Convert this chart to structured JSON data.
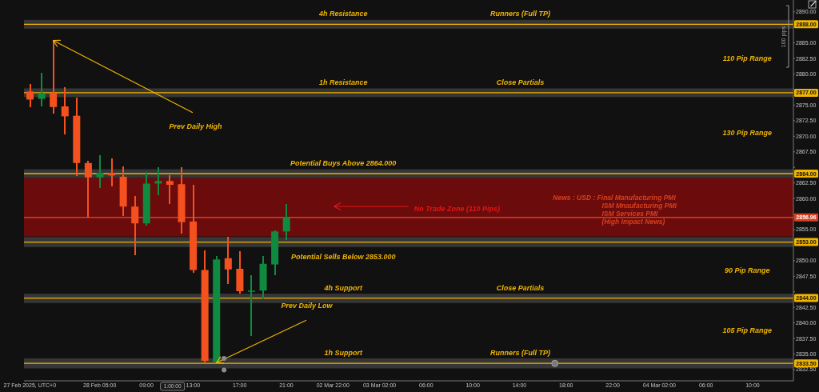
{
  "chart_data": {
    "type": "candlestick",
    "categories": [
      "27 Feb 2025, UTC+0",
      null,
      null,
      null,
      null,
      null,
      "28 Feb 05:00",
      null,
      null,
      null,
      "09:00",
      null,
      null,
      null,
      "13:00",
      null,
      null,
      null,
      "17:00",
      null,
      null,
      null,
      "21:00",
      null,
      null,
      null,
      "02 Mar 22:00",
      null,
      null,
      null,
      "03 Mar 02:00",
      null,
      null,
      null,
      "06:00",
      null,
      null,
      null,
      "10:00",
      null,
      null,
      null,
      "14:00",
      null,
      null,
      null,
      "18:00",
      null,
      null,
      null,
      "22:00",
      null,
      null,
      null,
      "04 Mar 02:00",
      null,
      null,
      null,
      "06:00",
      null,
      null,
      null,
      "10:00",
      null,
      null,
      null
    ],
    "ohlc": [
      [
        2877.2,
        2878.4,
        2874.7,
        2875.9
      ],
      [
        2876.0,
        2880.2,
        2874.8,
        2876.9
      ],
      [
        2877.0,
        2885.4,
        2873.7,
        2874.7
      ],
      [
        2874.8,
        2877.9,
        2870.3,
        2873.2
      ],
      [
        2873.3,
        2876.2,
        2863.6,
        2865.7
      ],
      [
        2865.7,
        2866.0,
        2856.9,
        2863.4
      ],
      [
        2863.4,
        2867.0,
        2861.7,
        2864.1
      ],
      [
        2864.1,
        2866.5,
        2862.0,
        2863.7
      ],
      [
        2863.5,
        2865.2,
        2857.2,
        2858.7
      ],
      [
        2858.7,
        2860.4,
        2850.9,
        2856.0
      ],
      [
        2856.0,
        2864.3,
        2855.6,
        2862.4
      ],
      [
        2862.4,
        2865.0,
        2860.5,
        2862.8
      ],
      [
        2862.8,
        2863.8,
        2859.1,
        2862.2
      ],
      [
        2862.3,
        2865.0,
        2854.4,
        2856.2
      ],
      [
        2856.3,
        2862.2,
        2848.1,
        2848.5
      ],
      [
        2848.5,
        2851.7,
        2833.7,
        2833.9
      ],
      [
        2833.7,
        2850.7,
        2833.6,
        2850.2
      ],
      [
        2850.4,
        2853.8,
        2846.2,
        2848.6
      ],
      [
        2848.7,
        2851.5,
        2844.7,
        2845.1
      ],
      [
        2845.1,
        2847.7,
        2837.9,
        2845.2
      ],
      [
        2845.2,
        2850.7,
        2844.0,
        2849.5
      ],
      [
        2849.4,
        2854.9,
        2847.7,
        2854.7
      ],
      [
        2854.7,
        2859.1,
        2853.3,
        2857.0
      ],
      null,
      null,
      null,
      null,
      null,
      null,
      null,
      null,
      null,
      null,
      null,
      null,
      null,
      null,
      null,
      null,
      null,
      null,
      null,
      null,
      null,
      null,
      null,
      null,
      null,
      null,
      null,
      null,
      null,
      null,
      null,
      null,
      null,
      null,
      null,
      null,
      null,
      null,
      null,
      null,
      null,
      null,
      null
    ],
    "colors": [
      "#f4511e",
      "#0f8a3e",
      "#f4511e",
      "#f4511e",
      "#f4511e",
      "#f4511e",
      "#0f8a3e",
      "#f4511e",
      "#f4511e",
      "#f4511e",
      "#0f8a3e",
      "#0f8a3e",
      "#f4511e",
      "#f4511e",
      "#f4511e",
      "#f4511e",
      "#0f8a3e",
      "#f4511e",
      "#f4511e",
      "#0f8a3e",
      "#0f8a3e",
      "#0f8a3e",
      "#0f8a3e",
      null,
      null,
      null,
      null,
      null,
      null,
      null,
      null,
      null,
      null,
      null,
      null,
      null,
      null,
      null,
      null,
      null,
      null,
      null,
      null,
      null,
      null,
      null,
      null,
      null,
      null,
      null,
      null,
      null,
      null,
      null,
      null,
      null,
      null,
      null,
      null,
      null,
      null,
      null,
      null,
      null,
      null,
      null
    ],
    "ylim": [
      2830.7,
      2891.9
    ],
    "yticks": [
      {
        "value": 2832.5,
        "label": "2832.50"
      },
      {
        "value": 2835,
        "label": "2835.00"
      },
      {
        "value": 2837.5,
        "label": "2837.50"
      },
      {
        "value": 2840,
        "label": "2840.00"
      },
      {
        "value": 2842.5,
        "label": "2842.50"
      },
      {
        "value": 2845,
        "label": null
      },
      {
        "value": 2847.5,
        "label": "2847.50"
      },
      {
        "value": 2850,
        "label": "2850.00"
      },
      {
        "value": 2852.5,
        "label": null
      },
      {
        "value": 2855,
        "label": "2855.00"
      },
      {
        "value": 2857.5,
        "label": null
      },
      {
        "value": 2860,
        "label": "2860.00"
      },
      {
        "value": 2862.5,
        "label": "2862.50"
      },
      {
        "value": 2865,
        "label": null
      },
      {
        "value": 2867.5,
        "label": "2867.50"
      },
      {
        "value": 2870,
        "label": "2870.00"
      },
      {
        "value": 2872.5,
        "label": "2872.50"
      },
      {
        "value": 2875,
        "label": "2875.00"
      },
      {
        "value": 2877.5,
        "label": null
      },
      {
        "value": 2880,
        "label": "2880.00"
      },
      {
        "value": 2882.5,
        "label": "2882.50"
      },
      {
        "value": 2885,
        "label": "2885.00"
      },
      {
        "value": 2887.5,
        "label": null
      },
      {
        "value": 2890,
        "label": "2890.00"
      }
    ],
    "bands": [
      {
        "axis": "y",
        "from": 2853.9,
        "to": 2863.3,
        "color": "#6b0b0b",
        "label": "No Trade Zone (110 Pips)"
      },
      {
        "axis": "y",
        "from": 2887.3,
        "to": 2888.7,
        "color": "#363636"
      },
      {
        "axis": "y",
        "from": 2876.3,
        "to": 2877.7,
        "color": "#363636"
      },
      {
        "axis": "y",
        "from": 2863.3,
        "to": 2864.7,
        "color": "#363636"
      },
      {
        "axis": "y",
        "from": 2852.2,
        "to": 2853.8,
        "color": "#363636"
      },
      {
        "axis": "y",
        "from": 2843.2,
        "to": 2844.7,
        "color": "#363636"
      },
      {
        "axis": "y",
        "from": 2832.7,
        "to": 2834.3,
        "color": "#363636"
      }
    ],
    "ref_lines": [
      {
        "axis": "y",
        "value": 2888,
        "label": "2888.00",
        "color": "#f0b400"
      },
      {
        "axis": "y",
        "value": 2877,
        "label": "2877.00",
        "color": "#f0b400"
      },
      {
        "axis": "y",
        "value": 2864,
        "label": "2864.00",
        "color": "#f0b400"
      },
      {
        "axis": "y",
        "value": 2853,
        "label": "2853.00",
        "color": "#f0b400"
      },
      {
        "axis": "y",
        "value": 2844,
        "label": "2844.00",
        "color": "#f0b400"
      },
      {
        "axis": "y",
        "value": 2833.5,
        "label": "2833.50",
        "color": "#f0b400"
      },
      {
        "axis": "y",
        "value": 2856.96,
        "label": "2856.96",
        "color": "#d8401f"
      }
    ],
    "annotations": [
      {
        "text": "4h Resistance",
        "y": 2888
      },
      {
        "text": "Runners (Full TP)",
        "y": 2888
      },
      {
        "text": "1h Resistance",
        "y": 2877
      },
      {
        "text": "Close Partials",
        "y": 2877
      },
      {
        "text": "Potential Buys Above 2864.000",
        "y": 2864
      },
      {
        "text": "News : USD : Final Manufacturing PMI\nISM Mnaufacturing PMI\nISM Services PMI\n(High Impact News)",
        "y": 2856.96
      },
      {
        "text": "Potential Sells Below 2853.000",
        "y": 2853
      },
      {
        "text": "4h Support",
        "y": 2844
      },
      {
        "text": "Close Partials",
        "y": 2844
      },
      {
        "text": "1h Support",
        "y": 2833.5
      },
      {
        "text": "Runners (Full TP)",
        "y": 2833.5
      },
      "110 Pip Range",
      "130 Pip Range",
      "90 Pip Range",
      "105 Pip Range",
      "Prev Daily High",
      "Prev Daily Low",
      "100 pips",
      "1:00:00"
    ]
  }
}
